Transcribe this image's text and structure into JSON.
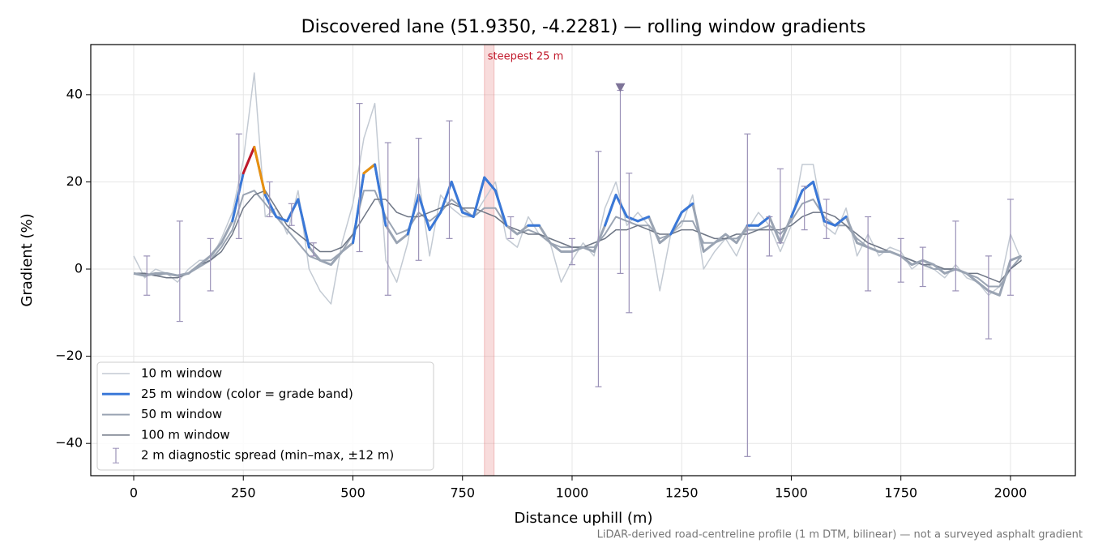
{
  "chart_data": {
    "type": "line",
    "title": "Discovered lane (51.9350, -4.2281) — rolling window gradients",
    "xlabel": "Distance uphill (m)",
    "ylabel": "Gradient (%)",
    "footnote": "LiDAR-derived road-centreline profile (1 m DTM, bilinear) — not a surveyed asphalt gradient",
    "xlim": [
      -98,
      2148
    ],
    "ylim": [
      -47.4,
      51.5
    ],
    "xticks": [
      0,
      250,
      500,
      750,
      1000,
      1250,
      1500,
      1750,
      2000
    ],
    "yticks": [
      {
        "value": -40,
        "label": "−40"
      },
      {
        "value": -20,
        "label": "−20"
      },
      0,
      20,
      40
    ],
    "grid": true,
    "legend": "lower left",
    "x": [
      0,
      25,
      50,
      75,
      100,
      125,
      150,
      175,
      200,
      225,
      250,
      275,
      300,
      325,
      350,
      375,
      400,
      425,
      450,
      475,
      500,
      525,
      550,
      575,
      600,
      625,
      650,
      675,
      700,
      725,
      750,
      775,
      800,
      825,
      850,
      875,
      900,
      925,
      950,
      975,
      1000,
      1025,
      1050,
      1075,
      1100,
      1125,
      1150,
      1175,
      1200,
      1225,
      1250,
      1275,
      1300,
      1325,
      1350,
      1375,
      1400,
      1425,
      1450,
      1475,
      1500,
      1525,
      1550,
      1575,
      1600,
      1625,
      1650,
      1675,
      1700,
      1725,
      1750,
      1775,
      1800,
      1825,
      1850,
      1875,
      1900,
      1925,
      1950,
      1975,
      2000,
      2025
    ],
    "series": [
      {
        "name": "10 m window",
        "color": "#c3cad3",
        "width": 1.5,
        "values": [
          3,
          -2,
          0,
          -1,
          -3,
          0,
          2,
          2,
          7,
          13,
          25,
          45,
          12,
          14,
          8,
          18,
          0,
          -5,
          -8,
          6,
          15,
          30,
          38,
          2,
          -3,
          6,
          21,
          3,
          17,
          14,
          12,
          12,
          16,
          20,
          7,
          5,
          12,
          8,
          6,
          -3,
          2,
          6,
          3,
          14,
          20,
          10,
          13,
          10,
          -5,
          8,
          10,
          17,
          0,
          4,
          7,
          3,
          9,
          13,
          10,
          4,
          10,
          24,
          24,
          10,
          8,
          14,
          3,
          8,
          3,
          5,
          4,
          0,
          2,
          0,
          -2,
          1,
          -2,
          -3,
          -6,
          -4,
          8,
          2
        ]
      },
      {
        "name": "25 m window (color = grade band)",
        "color": "#3a78d8",
        "width": 3,
        "low_color": "#9aa4b3",
        "bands": [
          {
            "from": 10,
            "color": "#3a78d8"
          },
          {
            "from": 20,
            "color": "#e8900f"
          },
          {
            "from": 25,
            "color": "#c0182a"
          }
        ],
        "values": [
          -1,
          -1.5,
          -1,
          -1,
          -1.5,
          -1,
          1,
          3,
          6,
          11,
          22,
          28,
          17,
          12,
          11,
          16,
          5,
          2,
          1,
          4,
          6,
          22,
          24,
          10,
          6,
          8,
          17,
          9,
          13,
          20,
          13,
          12,
          21,
          18,
          10,
          8,
          10,
          10,
          6,
          4,
          4,
          5,
          4,
          10,
          17,
          12,
          11,
          12,
          6,
          8,
          13,
          15,
          4,
          6,
          8,
          6,
          10,
          10,
          12,
          6,
          12,
          18,
          20,
          11,
          10,
          12,
          6,
          5,
          4,
          4,
          3,
          1,
          2,
          1,
          -1,
          0,
          -1,
          -3,
          -5,
          -6,
          2,
          3
        ]
      },
      {
        "name": "50 m window",
        "color": "#9aa4b3",
        "width": 2,
        "values": [
          -1,
          -1,
          -1.5,
          -1,
          -1.5,
          -1,
          0.5,
          2,
          5,
          9,
          17,
          18,
          15,
          12,
          9,
          6,
          3,
          2,
          2,
          4,
          8,
          18,
          18,
          12,
          8,
          9,
          13,
          11,
          13,
          16,
          14,
          12,
          14,
          14,
          10,
          8,
          9,
          8,
          6,
          5,
          5,
          5,
          5,
          8,
          12,
          11,
          10,
          10,
          7,
          8,
          11,
          11,
          6,
          6,
          7,
          7,
          9,
          9,
          10,
          8,
          11,
          15,
          16,
          12,
          10,
          10,
          7,
          5,
          4,
          4,
          3,
          2,
          1,
          0,
          0,
          0,
          -1,
          -2,
          -4,
          -4,
          0,
          3
        ]
      },
      {
        "name": "100 m window",
        "color": "#6e7685",
        "width": 1.5,
        "values": [
          -1,
          -1,
          -1.5,
          -2,
          -2,
          -1,
          1,
          2,
          4,
          8,
          14,
          17,
          18,
          14,
          10,
          8,
          6,
          4,
          4,
          5,
          8,
          12,
          16,
          16,
          13,
          12,
          12,
          13,
          14,
          15,
          14,
          14,
          13,
          12,
          10,
          9,
          8,
          8,
          7,
          6,
          5,
          5,
          6,
          7,
          9,
          9,
          10,
          9,
          8,
          8,
          9,
          9,
          8,
          7,
          7,
          8,
          8,
          9,
          9,
          9,
          10,
          12,
          13,
          13,
          12,
          10,
          8,
          6,
          5,
          4,
          3,
          2,
          1,
          1,
          0,
          0,
          -1,
          -1,
          -2,
          -3,
          0,
          2
        ]
      }
    ],
    "spread": {
      "name": "2 m diagnostic spread (min–max, ±12 m)",
      "color": "#9b92b8",
      "x": [
        30,
        105,
        175,
        240,
        310,
        360,
        410,
        515,
        580,
        650,
        720,
        860,
        1000,
        1060,
        1110,
        1130,
        1400,
        1450,
        1475,
        1530,
        1580,
        1675,
        1750,
        1800,
        1875,
        1950,
        2000
      ],
      "low": [
        -6,
        -12,
        -5,
        7,
        12,
        10,
        3,
        4,
        -6,
        2,
        7,
        7,
        1,
        -27,
        -1,
        -10,
        -43,
        3,
        6,
        9,
        7,
        -5,
        -3,
        -4,
        -5,
        -16,
        -6
      ],
      "high": [
        3,
        11,
        7,
        31,
        20,
        15,
        6,
        38,
        29,
        30,
        34,
        12,
        7,
        27,
        41,
        22,
        31,
        12,
        23,
        19,
        16,
        12,
        7,
        5,
        11,
        3,
        16
      ]
    },
    "span": {
      "x0": 800,
      "x1": 822,
      "label": "steepest 25 m",
      "color": "#e88a8a"
    },
    "marker": {
      "x": 1110,
      "y": 41.5,
      "color": "#7d7398"
    }
  }
}
